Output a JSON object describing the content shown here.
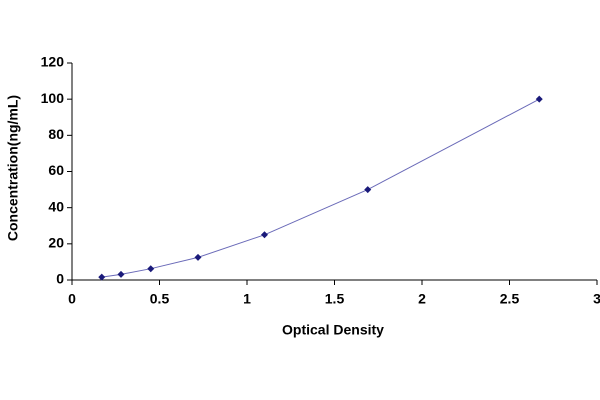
{
  "chart_data": {
    "type": "line",
    "x_label": "Optical Density",
    "y_label": "Concentration(ng/mL)",
    "x": [
      0.17,
      0.28,
      0.45,
      0.72,
      1.1,
      1.69,
      2.67
    ],
    "values": [
      1.56,
      3.12,
      6.25,
      12.5,
      25,
      50,
      100
    ],
    "color": "#1a1a7a",
    "line_color": "#6a6ab8",
    "xlim": [
      0,
      3
    ],
    "xticks": [
      0,
      0.5,
      1,
      1.5,
      2,
      2.5,
      3
    ],
    "ylim": [
      0,
      120
    ],
    "yticks": [
      0,
      20,
      40,
      60,
      80,
      100,
      120
    ],
    "grid": false
  }
}
